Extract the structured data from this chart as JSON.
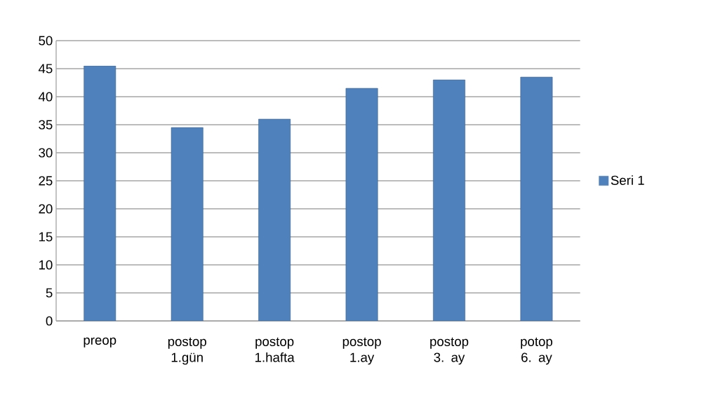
{
  "chart_data": {
    "type": "bar",
    "categories": [
      "preop",
      "postop 1.gün",
      "postop 1.hafta",
      "postop 1.ay",
      "postop 3. ay",
      "potop 6. ay"
    ],
    "series": [
      {
        "name": "Seri 1",
        "color": "#4f81bd",
        "values": [
          45.5,
          34.5,
          36,
          41.5,
          43,
          43.5
        ]
      }
    ],
    "ylim": [
      0,
      50
    ],
    "yticks": [
      0,
      5,
      10,
      15,
      20,
      25,
      30,
      35,
      40,
      45,
      50
    ],
    "grid": "y",
    "legend": "right"
  }
}
